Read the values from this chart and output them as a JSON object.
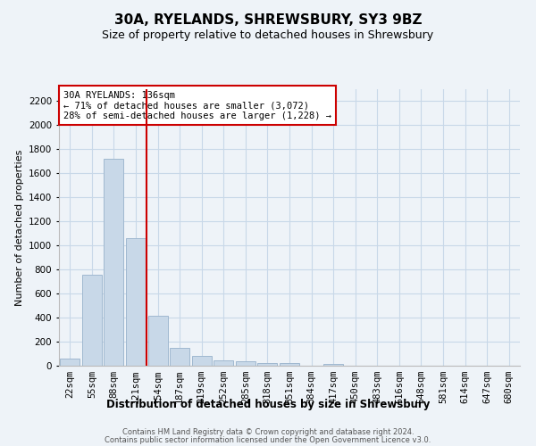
{
  "title": "30A, RYELANDS, SHREWSBURY, SY3 9BZ",
  "subtitle": "Size of property relative to detached houses in Shrewsbury",
  "xlabel": "Distribution of detached houses by size in Shrewsbury",
  "ylabel": "Number of detached properties",
  "footer1": "Contains HM Land Registry data © Crown copyright and database right 2024.",
  "footer2": "Contains public sector information licensed under the Open Government Licence v3.0.",
  "bar_labels": [
    "22sqm",
    "55sqm",
    "88sqm",
    "121sqm",
    "154sqm",
    "187sqm",
    "219sqm",
    "252sqm",
    "285sqm",
    "318sqm",
    "351sqm",
    "384sqm",
    "417sqm",
    "450sqm",
    "483sqm",
    "516sqm",
    "548sqm",
    "581sqm",
    "614sqm",
    "647sqm",
    "680sqm"
  ],
  "bar_values": [
    60,
    760,
    1725,
    1060,
    415,
    150,
    83,
    45,
    35,
    25,
    20,
    0,
    18,
    0,
    0,
    0,
    0,
    0,
    0,
    0,
    0
  ],
  "bar_color": "#c8d8e8",
  "bar_edgecolor": "#a0b8d0",
  "vline_x": 3.5,
  "vline_color": "#cc0000",
  "annotation_text": "30A RYELANDS: 136sqm\n← 71% of detached houses are smaller (3,072)\n28% of semi-detached houses are larger (1,228) →",
  "annotation_box_edgecolor": "#cc0000",
  "annotation_box_facecolor": "#ffffff",
  "ylim": [
    0,
    2300
  ],
  "yticks": [
    0,
    200,
    400,
    600,
    800,
    1000,
    1200,
    1400,
    1600,
    1800,
    2000,
    2200
  ],
  "grid_color": "#c8d8e8",
  "background_color": "#eef3f8",
  "title_fontsize": 11,
  "subtitle_fontsize": 9,
  "ylabel_fontsize": 8,
  "xlabel_fontsize": 8.5,
  "tick_fontsize": 7.5,
  "annotation_fontsize": 7.5,
  "footer_fontsize": 6
}
